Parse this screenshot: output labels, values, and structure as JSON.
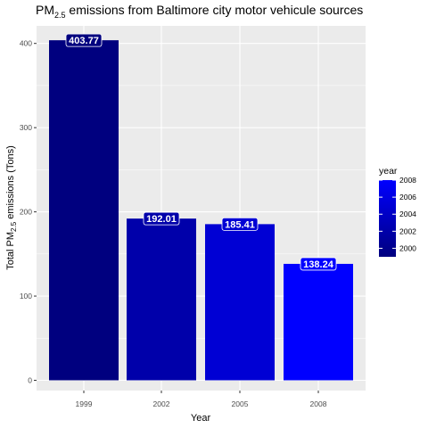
{
  "chart_data": {
    "type": "bar",
    "title_main": "PM",
    "title_sub": "2.5",
    "title_rest": " emissions from Baltimore city motor vehicule sources",
    "xlabel": "Year",
    "ylabel_main": "Total PM",
    "ylabel_sub": "2.5",
    "ylabel_rest": " emissions (Tons)",
    "categories": [
      "1999",
      "2002",
      "2005",
      "2008"
    ],
    "values": [
      403.77,
      192.01,
      185.41,
      138.24
    ],
    "value_labels": [
      "403.77",
      "192.01",
      "185.41",
      "138.24"
    ],
    "year_values": [
      1999,
      2002,
      2005,
      2008
    ],
    "ylim": [
      0,
      420
    ],
    "yticks": [
      0,
      100,
      200,
      300,
      400
    ],
    "ytick_labels": [
      "0",
      "100",
      "200",
      "300",
      "400"
    ],
    "grid": true,
    "legend": {
      "title": "year",
      "placement": "right",
      "type": "colorbar",
      "range": [
        1999,
        2008
      ],
      "ticks": [
        2000,
        2002,
        2004,
        2006,
        2008
      ],
      "tick_labels": [
        "2000",
        "2002",
        "2004",
        "2006",
        "2008"
      ],
      "color_low": "#00007f",
      "color_high": "#0000ff"
    },
    "colors": {
      "panel_background": "#ebebeb",
      "grid_major": "#ffffff"
    }
  }
}
